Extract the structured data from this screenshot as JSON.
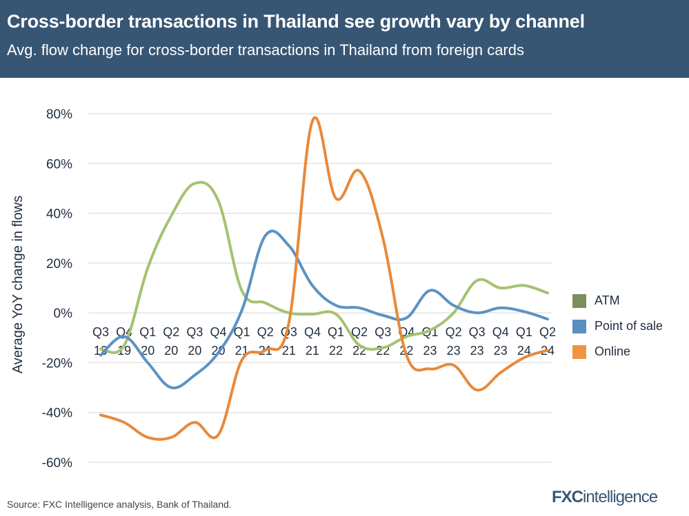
{
  "header": {
    "title": "Cross-border transactions in Thailand see growth vary by channel",
    "subtitle": "Avg. flow change for cross-border transactions in Thailand from foreign cards"
  },
  "chart_data": {
    "type": "line",
    "title": "Cross-border transactions in Thailand see growth vary by channel",
    "subtitle": "Avg. flow change for cross-border transactions in Thailand from foreign cards",
    "ylabel": "Average YoY change in flows",
    "xlabel": "",
    "ylim": [
      -60,
      80
    ],
    "yticks": [
      80,
      60,
      40,
      20,
      0,
      -20,
      -40,
      -60
    ],
    "ytick_labels": [
      "80%",
      "60%",
      "40%",
      "20%",
      "0%",
      "-20%",
      "-40%",
      "-60%"
    ],
    "grid": true,
    "legend_position": "right",
    "categories": [
      [
        "Q3",
        "19"
      ],
      [
        "Q4",
        "19"
      ],
      [
        "Q1",
        "20"
      ],
      [
        "Q2",
        "20"
      ],
      [
        "Q3",
        "20"
      ],
      [
        "Q4",
        "20"
      ],
      [
        "Q1",
        "21"
      ],
      [
        "Q2",
        "21"
      ],
      [
        "Q3",
        "21"
      ],
      [
        "Q4",
        "21"
      ],
      [
        "Q1",
        "22"
      ],
      [
        "Q2",
        "22"
      ],
      [
        "Q3",
        "22"
      ],
      [
        "Q4",
        "22"
      ],
      [
        "Q1",
        "23"
      ],
      [
        "Q2",
        "23"
      ],
      [
        "Q3",
        "23"
      ],
      [
        "Q4",
        "23"
      ],
      [
        "Q1",
        "24"
      ],
      [
        "Q2",
        "24"
      ]
    ],
    "series": [
      {
        "name": "ATM",
        "color": "#a5c26f",
        "legend_color": "#7b8e5c",
        "values": [
          -14.5,
          -13,
          18,
          39,
          52,
          45,
          9,
          4,
          0,
          -0.5,
          -0.5,
          -13,
          -14,
          -9.5,
          -7,
          0,
          13,
          10,
          11,
          8
        ]
      },
      {
        "name": "Point of sale",
        "color": "#5b93c4",
        "legend_color": "#5a8fc0",
        "values": [
          -17,
          -9.5,
          -20,
          -30,
          -25,
          -16,
          1,
          31,
          27,
          11,
          3,
          2,
          -1,
          -2,
          9,
          3,
          0,
          2,
          0.5,
          -2.5
        ]
      },
      {
        "name": "Online",
        "color": "#e8893a",
        "legend_color": "#f0953e",
        "values": [
          -41,
          -44,
          -50,
          -50,
          -44,
          -49,
          -19,
          -15,
          -4,
          77,
          46,
          57,
          30,
          -17,
          -22.5,
          -21,
          -31,
          -24,
          -18,
          -15
        ]
      }
    ]
  },
  "footer": {
    "source": "Source: FXC Intelligence analysis, Bank of Thailand.",
    "logo": "FXCintelligence"
  }
}
